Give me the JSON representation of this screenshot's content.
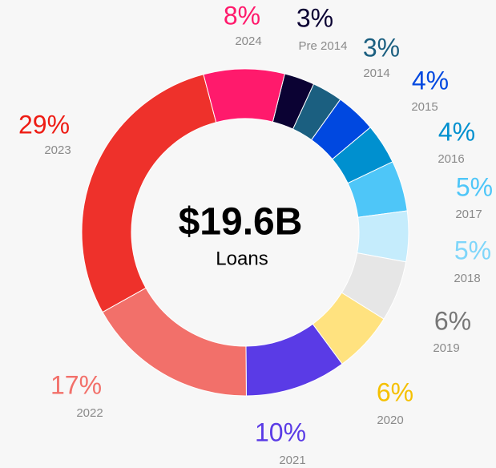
{
  "chart_data": {
    "type": "donut",
    "center_text": "$19.6B",
    "center_subtext": "Loans",
    "categories": [
      "Pre 2014",
      "2014",
      "2015",
      "2016",
      "2017",
      "2018",
      "2019",
      "2020",
      "2021",
      "2022",
      "2023",
      "2024"
    ],
    "values": [
      3,
      3,
      4,
      4,
      5,
      5,
      6,
      6,
      10,
      17,
      29,
      8
    ],
    "value_labels": [
      "3%",
      "3%",
      "4%",
      "4%",
      "5%",
      "5%",
      "6%",
      "6%",
      "10%",
      "17%",
      "29%",
      "8%"
    ],
    "colors": [
      "#0b0233",
      "#1b5f80",
      "#0048e0",
      "#0090cf",
      "#4ec6f8",
      "#c5ecfc",
      "#e6e6e6",
      "#ffe27f",
      "#5a3be6",
      "#f2706a",
      "#ee312b",
      "#ff1a6c"
    ],
    "label_colors": [
      "#0b0233",
      "#1b5f80",
      "#0048e0",
      "#0090cf",
      "#4ec6f8",
      "#7fd6fa",
      "#777777",
      "#f5c000",
      "#5a3be6",
      "#f2706a",
      "#ee1c14",
      "#ff1a6c"
    ]
  }
}
